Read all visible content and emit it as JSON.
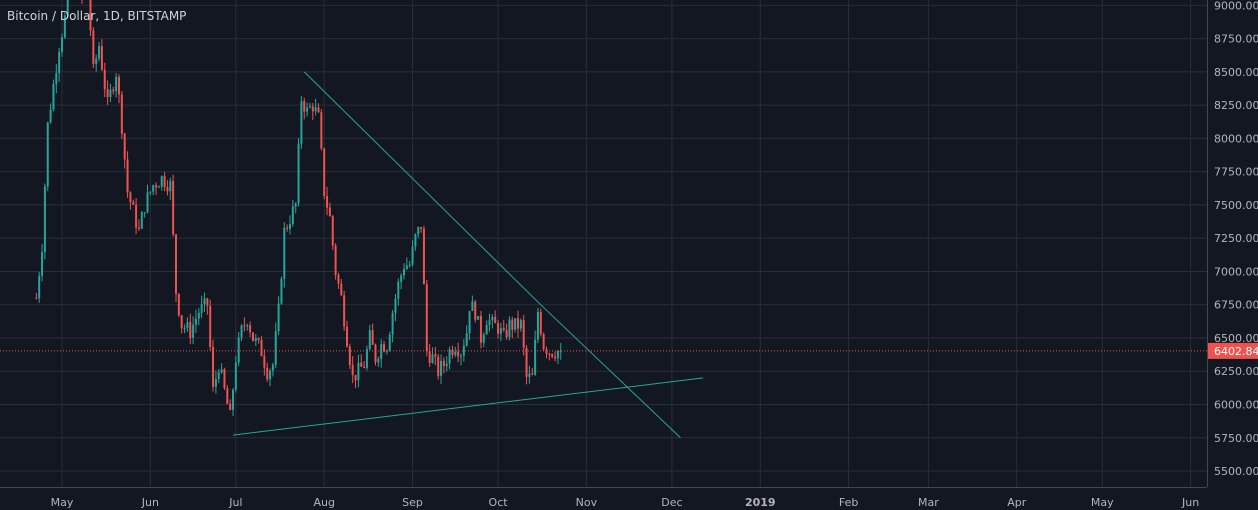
{
  "header": {
    "symbol": "Bitcoin / Dollar, 1D, BITSTAMP"
  },
  "chart_data": {
    "type": "candlestick",
    "title": "Bitcoin / Dollar, 1D, BITSTAMP",
    "x_labels": [
      "May",
      "Jun",
      "Jul",
      "Aug",
      "Sep",
      "Oct",
      "Nov",
      "Dec",
      "2019",
      "Feb",
      "Mar",
      "Apr",
      "May",
      "Jun"
    ],
    "x_label_dates": [
      "2018-05-01",
      "2018-06-01",
      "2018-07-01",
      "2018-08-01",
      "2018-09-01",
      "2018-10-01",
      "2018-11-01",
      "2018-12-01",
      "2019-01-01",
      "2019-02-01",
      "2019-03-01",
      "2019-04-01",
      "2019-05-01",
      "2019-06-01"
    ],
    "y_ticks": [
      "9000.00",
      "8750.00",
      "8500.00",
      "8250.00",
      "8000.00",
      "7750.00",
      "7500.00",
      "7250.00",
      "7000.00",
      "6750.00",
      "6500.00",
      "6250.00",
      "6000.00",
      "5750.00",
      "5500.00"
    ],
    "ylim": [
      5380,
      9040
    ],
    "last_price": {
      "value": 6402.84,
      "label": "6402.84",
      "color": "#ef5350"
    },
    "colors": {
      "up": "#26a69a",
      "down": "#ef5350",
      "background": "#131722",
      "grid": "#2a2e39",
      "trendline": "#26a69a",
      "text": "#b2b5be"
    },
    "series": [
      {
        "name": "",
        "close_points": [
          [
            "2018-04-22",
            6800
          ],
          [
            "2018-04-24",
            7200
          ],
          [
            "2018-04-26",
            8100
          ],
          [
            "2018-04-28",
            8400
          ],
          [
            "2018-04-30",
            8700
          ],
          [
            "2018-05-02",
            8900
          ],
          [
            "2018-05-04",
            9150
          ],
          [
            "2018-05-06",
            9250
          ],
          [
            "2018-05-08",
            9050
          ],
          [
            "2018-05-10",
            9150
          ],
          [
            "2018-05-12",
            8500
          ],
          [
            "2018-05-14",
            8700
          ],
          [
            "2018-05-17",
            8250
          ],
          [
            "2018-05-20",
            8500
          ],
          [
            "2018-05-22",
            8100
          ],
          [
            "2018-05-24",
            7600
          ],
          [
            "2018-05-26",
            7450
          ],
          [
            "2018-05-28",
            7300
          ],
          [
            "2018-05-30",
            7500
          ],
          [
            "2018-06-02",
            7650
          ],
          [
            "2018-06-05",
            7700
          ],
          [
            "2018-06-08",
            7650
          ],
          [
            "2018-06-10",
            6850
          ],
          [
            "2018-06-12",
            6600
          ],
          [
            "2018-06-15",
            6550
          ],
          [
            "2018-06-18",
            6700
          ],
          [
            "2018-06-21",
            6750
          ],
          [
            "2018-06-23",
            6100
          ],
          [
            "2018-06-25",
            6300
          ],
          [
            "2018-06-27",
            6100
          ],
          [
            "2018-06-29",
            5900
          ],
          [
            "2018-07-01",
            6350
          ],
          [
            "2018-07-03",
            6550
          ],
          [
            "2018-07-05",
            6650
          ],
          [
            "2018-07-07",
            6500
          ],
          [
            "2018-07-10",
            6400
          ],
          [
            "2018-07-12",
            6250
          ],
          [
            "2018-07-14",
            6300
          ],
          [
            "2018-07-16",
            6700
          ],
          [
            "2018-07-18",
            7300
          ],
          [
            "2018-07-20",
            7400
          ],
          [
            "2018-07-22",
            7500
          ],
          [
            "2018-07-24",
            8300
          ],
          [
            "2018-07-26",
            8200
          ],
          [
            "2018-07-28",
            8250
          ],
          [
            "2018-07-30",
            8150
          ],
          [
            "2018-08-01",
            7600
          ],
          [
            "2018-08-03",
            7400
          ],
          [
            "2018-08-05",
            7000
          ],
          [
            "2018-08-07",
            6800
          ],
          [
            "2018-08-09",
            6500
          ],
          [
            "2018-08-11",
            6200
          ],
          [
            "2018-08-13",
            6250
          ],
          [
            "2018-08-15",
            6300
          ],
          [
            "2018-08-17",
            6500
          ],
          [
            "2018-08-19",
            6350
          ],
          [
            "2018-08-21",
            6450
          ],
          [
            "2018-08-23",
            6450
          ],
          [
            "2018-08-25",
            6700
          ],
          [
            "2018-08-27",
            6900
          ],
          [
            "2018-08-29",
            7050
          ],
          [
            "2018-08-31",
            7050
          ],
          [
            "2018-09-02",
            7250
          ],
          [
            "2018-09-04",
            7350
          ],
          [
            "2018-09-06",
            6400
          ],
          [
            "2018-09-08",
            6350
          ],
          [
            "2018-09-10",
            6250
          ],
          [
            "2018-09-12",
            6300
          ],
          [
            "2018-09-14",
            6400
          ],
          [
            "2018-09-16",
            6450
          ],
          [
            "2018-09-18",
            6400
          ],
          [
            "2018-09-20",
            6550
          ],
          [
            "2018-09-21",
            6750
          ],
          [
            "2018-09-23",
            6700
          ],
          [
            "2018-09-25",
            6500
          ],
          [
            "2018-09-27",
            6650
          ],
          [
            "2018-09-29",
            6600
          ],
          [
            "2018-10-01",
            6580
          ],
          [
            "2018-10-03",
            6500
          ],
          [
            "2018-10-05",
            6600
          ],
          [
            "2018-10-07",
            6590
          ],
          [
            "2018-10-09",
            6600
          ],
          [
            "2018-10-11",
            6200
          ],
          [
            "2018-10-13",
            6200
          ],
          [
            "2018-10-15",
            6700
          ],
          [
            "2018-10-17",
            6450
          ],
          [
            "2018-10-19",
            6400
          ],
          [
            "2018-10-21",
            6400
          ],
          [
            "2018-10-23",
            6402.84
          ]
        ]
      }
    ],
    "trendlines": [
      {
        "name": "descending-trendline",
        "points": [
          [
            "2018-07-25",
            8500
          ],
          [
            "2018-10-15",
            6770
          ],
          [
            "2018-12-04",
            5750
          ]
        ]
      },
      {
        "name": "ascending-trendline",
        "points": [
          [
            "2018-06-30",
            5770
          ],
          [
            "2018-12-12",
            6200
          ]
        ]
      }
    ]
  }
}
